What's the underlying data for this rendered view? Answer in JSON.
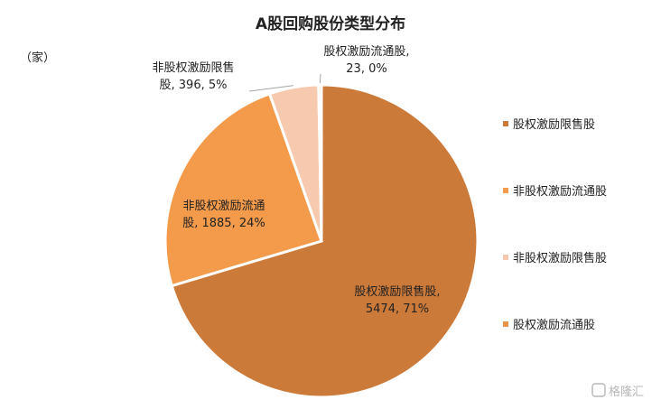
{
  "chart_data": {
    "type": "pie",
    "title": "A股回购股份类型分布",
    "unit": "（家）",
    "slices": [
      {
        "name": "股权激励限售股",
        "value": 5474,
        "percent": "71%",
        "color": "#cc7a3a",
        "label_lines": [
          "股权激励限售股,",
          "5474, 71%"
        ]
      },
      {
        "name": "非股权激励流通股",
        "value": 1885,
        "percent": "24%",
        "color": "#f49b4b",
        "label_lines": [
          "非股权激励流通",
          "股, 1885, 24%"
        ]
      },
      {
        "name": "非股权激励限售股",
        "value": 396,
        "percent": "5%",
        "color": "#f7c9ae",
        "label_lines": [
          "非股权激励限售",
          "股, 396, 5%"
        ]
      },
      {
        "name": "股权激励流通股",
        "value": 23,
        "percent": "0%",
        "color": "#e8924a",
        "label_lines": [
          "股权激励流通股,",
          "23, 0%"
        ]
      }
    ],
    "legend_position": "right"
  },
  "watermark": "格隆汇"
}
